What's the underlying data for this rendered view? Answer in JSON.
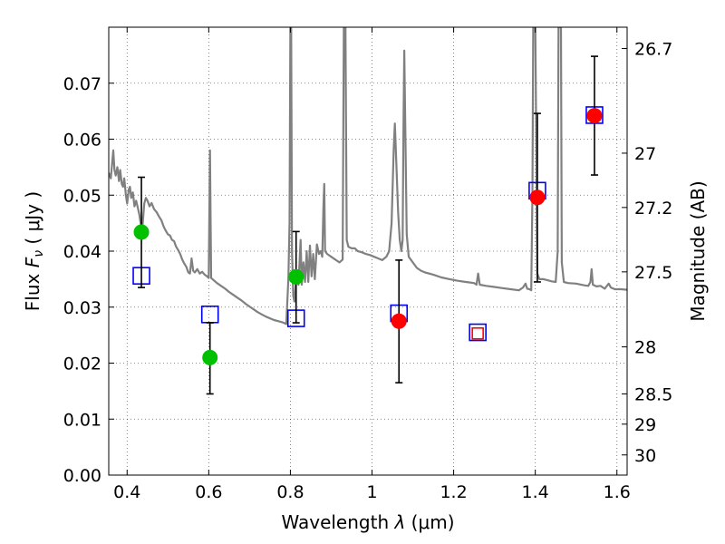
{
  "chart_data": {
    "type": "scatter",
    "xlabel": "Wavelength  λ (μm)",
    "ylabel": "Flux  F_ν  ( μJy )",
    "ylabel_parts": {
      "prefix": "Flux  ",
      "symbol": "F",
      "subscript": "ν",
      "suffix": "  ( μJy )"
    },
    "xlabel_parts": {
      "prefix": "Wavelength  ",
      "symbol": "λ",
      "suffix": " (μm)"
    },
    "y2label": "Magnitude (AB)",
    "xlim": [
      0.355,
      1.625
    ],
    "ylim": [
      0.0,
      0.08
    ],
    "grid": true,
    "x_ticks": [
      {
        "value": 0.4,
        "label": "0.4"
      },
      {
        "value": 0.6,
        "label": "0.6"
      },
      {
        "value": 0.8,
        "label": "0.8"
      },
      {
        "value": 1.0,
        "label": "1"
      },
      {
        "value": 1.2,
        "label": "1.2"
      },
      {
        "value": 1.4,
        "label": "1.4"
      },
      {
        "value": 1.6,
        "label": "1.6"
      }
    ],
    "y_ticks": [
      {
        "value": 0.0,
        "label": "0.00"
      },
      {
        "value": 0.01,
        "label": "0.01"
      },
      {
        "value": 0.02,
        "label": "0.02"
      },
      {
        "value": 0.03,
        "label": "0.03"
      },
      {
        "value": 0.04,
        "label": "0.04"
      },
      {
        "value": 0.05,
        "label": "0.05"
      },
      {
        "value": 0.06,
        "label": "0.06"
      },
      {
        "value": 0.07,
        "label": "0.07"
      }
    ],
    "y2_ticks": [
      {
        "flux": 0.0762,
        "label": "26.7"
      },
      {
        "flux": 0.0575,
        "label": "27"
      },
      {
        "flux": 0.0478,
        "label": "27.2"
      },
      {
        "flux": 0.0363,
        "label": "27.5"
      },
      {
        "flux": 0.0229,
        "label": "28"
      },
      {
        "flux": 0.0145,
        "label": "28.5"
      },
      {
        "flux": 0.0091,
        "label": "29"
      },
      {
        "flux": 0.0036,
        "label": "30"
      }
    ],
    "series": [
      {
        "kind": "line",
        "color": "#808080",
        "points": [
          [
            0.355,
            0.054
          ],
          [
            0.36,
            0.053
          ],
          [
            0.363,
            0.0555
          ],
          [
            0.366,
            0.058
          ],
          [
            0.369,
            0.0545
          ],
          [
            0.372,
            0.0535
          ],
          [
            0.376,
            0.055
          ],
          [
            0.38,
            0.0525
          ],
          [
            0.383,
            0.0545
          ],
          [
            0.387,
            0.052
          ],
          [
            0.39,
            0.0515
          ],
          [
            0.393,
            0.053
          ],
          [
            0.397,
            0.05
          ],
          [
            0.4,
            0.0485
          ],
          [
            0.404,
            0.051
          ],
          [
            0.407,
            0.0515
          ],
          [
            0.41,
            0.0495
          ],
          [
            0.414,
            0.0505
          ],
          [
            0.418,
            0.048
          ],
          [
            0.422,
            0.049
          ],
          [
            0.426,
            0.0478
          ],
          [
            0.43,
            0.0465
          ],
          [
            0.434,
            0.0445
          ],
          [
            0.438,
            0.0448
          ],
          [
            0.442,
            0.0485
          ],
          [
            0.446,
            0.0495
          ],
          [
            0.45,
            0.049
          ],
          [
            0.455,
            0.048
          ],
          [
            0.46,
            0.0486
          ],
          [
            0.466,
            0.0475
          ],
          [
            0.472,
            0.047
          ],
          [
            0.478,
            0.0462
          ],
          [
            0.484,
            0.0455
          ],
          [
            0.49,
            0.0443
          ],
          [
            0.495,
            0.0436
          ],
          [
            0.5,
            0.043
          ],
          [
            0.505,
            0.0428
          ],
          [
            0.51,
            0.042
          ],
          [
            0.515,
            0.0418
          ],
          [
            0.52,
            0.0408
          ],
          [
            0.525,
            0.0402
          ],
          [
            0.53,
            0.0395
          ],
          [
            0.535,
            0.0385
          ],
          [
            0.54,
            0.0378
          ],
          [
            0.545,
            0.0372
          ],
          [
            0.55,
            0.0362
          ],
          [
            0.554,
            0.036
          ],
          [
            0.558,
            0.0387
          ],
          [
            0.562,
            0.0365
          ],
          [
            0.566,
            0.0362
          ],
          [
            0.572,
            0.0368
          ],
          [
            0.578,
            0.036
          ],
          [
            0.584,
            0.0363
          ],
          [
            0.59,
            0.0358
          ],
          [
            0.596,
            0.0355
          ],
          [
            0.6,
            0.0352
          ],
          [
            0.603,
            0.058
          ],
          [
            0.606,
            0.0352
          ],
          [
            0.612,
            0.0348
          ],
          [
            0.62,
            0.0343
          ],
          [
            0.63,
            0.0338
          ],
          [
            0.64,
            0.0333
          ],
          [
            0.65,
            0.0327
          ],
          [
            0.66,
            0.0322
          ],
          [
            0.67,
            0.0317
          ],
          [
            0.68,
            0.0312
          ],
          [
            0.69,
            0.0306
          ],
          [
            0.7,
            0.0301
          ],
          [
            0.71,
            0.0296
          ],
          [
            0.72,
            0.0291
          ],
          [
            0.73,
            0.0287
          ],
          [
            0.74,
            0.0283
          ],
          [
            0.75,
            0.028
          ],
          [
            0.76,
            0.0277
          ],
          [
            0.77,
            0.0275
          ],
          [
            0.78,
            0.0273
          ],
          [
            0.79,
            0.027
          ],
          [
            0.795,
            0.035
          ],
          [
            0.798,
            0.045
          ],
          [
            0.8,
            0.08
          ],
          [
            0.802,
            0.08
          ],
          [
            0.804,
            0.04
          ],
          [
            0.807,
            0.032
          ],
          [
            0.81,
            0.031
          ],
          [
            0.815,
            0.036
          ],
          [
            0.82,
            0.034
          ],
          [
            0.825,
            0.042
          ],
          [
            0.828,
            0.034
          ],
          [
            0.832,
            0.038
          ],
          [
            0.836,
            0.0345
          ],
          [
            0.84,
            0.04
          ],
          [
            0.844,
            0.0345
          ],
          [
            0.848,
            0.041
          ],
          [
            0.852,
            0.0355
          ],
          [
            0.856,
            0.0395
          ],
          [
            0.86,
            0.035
          ],
          [
            0.865,
            0.0412
          ],
          [
            0.87,
            0.0395
          ],
          [
            0.874,
            0.04
          ],
          [
            0.878,
            0.039
          ],
          [
            0.881,
            0.048
          ],
          [
            0.883,
            0.052
          ],
          [
            0.885,
            0.04
          ],
          [
            0.89,
            0.0395
          ],
          [
            0.9,
            0.039
          ],
          [
            0.91,
            0.0385
          ],
          [
            0.92,
            0.038
          ],
          [
            0.928,
            0.0385
          ],
          [
            0.931,
            0.08
          ],
          [
            0.935,
            0.08
          ],
          [
            0.938,
            0.042
          ],
          [
            0.942,
            0.0408
          ],
          [
            0.95,
            0.0405
          ],
          [
            0.958,
            0.0405
          ],
          [
            0.965,
            0.04
          ],
          [
            0.975,
            0.0398
          ],
          [
            0.985,
            0.0395
          ],
          [
            0.995,
            0.0393
          ],
          [
            1.005,
            0.039
          ],
          [
            1.015,
            0.0387
          ],
          [
            1.025,
            0.0384
          ],
          [
            1.035,
            0.039
          ],
          [
            1.042,
            0.04
          ],
          [
            1.048,
            0.045
          ],
          [
            1.053,
            0.058
          ],
          [
            1.056,
            0.0628
          ],
          [
            1.06,
            0.055
          ],
          [
            1.064,
            0.047
          ],
          [
            1.068,
            0.042
          ],
          [
            1.072,
            0.04
          ],
          [
            1.075,
            0.042
          ],
          [
            1.077,
            0.062
          ],
          [
            1.079,
            0.0758
          ],
          [
            1.082,
            0.06
          ],
          [
            1.085,
            0.043
          ],
          [
            1.09,
            0.039
          ],
          [
            1.1,
            0.038
          ],
          [
            1.11,
            0.037
          ],
          [
            1.12,
            0.0365
          ],
          [
            1.13,
            0.0362
          ],
          [
            1.15,
            0.0358
          ],
          [
            1.17,
            0.0353
          ],
          [
            1.19,
            0.035
          ],
          [
            1.21,
            0.0347
          ],
          [
            1.23,
            0.0345
          ],
          [
            1.25,
            0.0343
          ],
          [
            1.256,
            0.034
          ],
          [
            1.26,
            0.036
          ],
          [
            1.264,
            0.034
          ],
          [
            1.28,
            0.0338
          ],
          [
            1.3,
            0.0336
          ],
          [
            1.32,
            0.0334
          ],
          [
            1.34,
            0.0332
          ],
          [
            1.36,
            0.033
          ],
          [
            1.37,
            0.0335
          ],
          [
            1.376,
            0.0342
          ],
          [
            1.38,
            0.0333
          ],
          [
            1.386,
            0.0332
          ],
          [
            1.39,
            0.033
          ],
          [
            1.393,
            0.05
          ],
          [
            1.395,
            0.08
          ],
          [
            1.4,
            0.08
          ],
          [
            1.405,
            0.036
          ],
          [
            1.41,
            0.035
          ],
          [
            1.42,
            0.035
          ],
          [
            1.43,
            0.0348
          ],
          [
            1.44,
            0.0346
          ],
          [
            1.45,
            0.0345
          ],
          [
            1.455,
            0.04
          ],
          [
            1.457,
            0.08
          ],
          [
            1.463,
            0.08
          ],
          [
            1.465,
            0.038
          ],
          [
            1.47,
            0.0345
          ],
          [
            1.48,
            0.0343
          ],
          [
            1.5,
            0.0342
          ],
          [
            1.52,
            0.0339
          ],
          [
            1.53,
            0.0338
          ],
          [
            1.535,
            0.0345
          ],
          [
            1.538,
            0.0368
          ],
          [
            1.541,
            0.034
          ],
          [
            1.55,
            0.0337
          ],
          [
            1.56,
            0.0338
          ],
          [
            1.57,
            0.0333
          ],
          [
            1.58,
            0.0342
          ],
          [
            1.585,
            0.0335
          ],
          [
            1.595,
            0.0332
          ],
          [
            1.61,
            0.0332
          ],
          [
            1.625,
            0.0331
          ]
        ]
      },
      {
        "kind": "open-square",
        "color": "#0000ff",
        "points": [
          [
            0.435,
            0.0356
          ],
          [
            0.603,
            0.0287
          ],
          [
            0.814,
            0.028
          ],
          [
            1.066,
            0.0289
          ],
          [
            1.259,
            0.0255
          ],
          [
            1.405,
            0.0508
          ],
          [
            1.545,
            0.0643
          ]
        ]
      },
      {
        "kind": "filled-circle",
        "color": "#00c000",
        "points": [
          {
            "x": 0.435,
            "y": 0.0434,
            "yerr": [
              0.0335,
              0.0532
            ]
          },
          {
            "x": 0.603,
            "y": 0.021,
            "yerr": [
              0.0145,
              0.0272
            ]
          },
          {
            "x": 0.814,
            "y": 0.0354,
            "yerr": [
              0.0272,
              0.0435
            ]
          }
        ]
      },
      {
        "kind": "filled-circle",
        "color": "#ff0000",
        "points": [
          {
            "x": 1.066,
            "y": 0.0275,
            "yerr": [
              0.0165,
              0.0384
            ]
          },
          {
            "x": 1.405,
            "y": 0.0496,
            "yerr": [
              0.0345,
              0.0646
            ]
          },
          {
            "x": 1.545,
            "y": 0.0642,
            "yerr": [
              0.0536,
              0.0748
            ]
          }
        ]
      },
      {
        "kind": "open-square-small",
        "color": "#ff0000",
        "points": [
          [
            1.259,
            0.0253
          ]
        ]
      }
    ]
  }
}
